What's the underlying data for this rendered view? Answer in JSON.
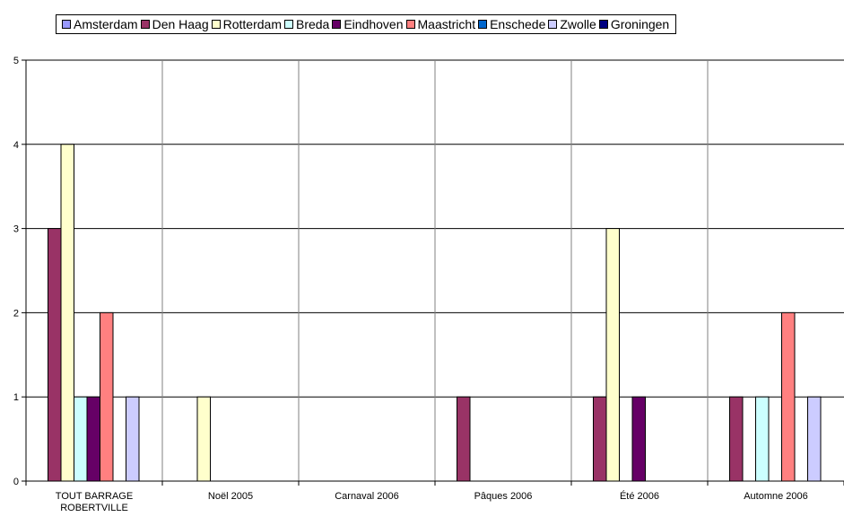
{
  "chart_data": {
    "type": "bar",
    "categories": [
      "TOUT BARRAGE ROBERTVILLE",
      "Noël 2005",
      "Carnaval 2006",
      "Pâques 2006",
      "Été 2006",
      "Automne 2006"
    ],
    "category_lines": [
      [
        "TOUT BARRAGE",
        "ROBERTVILLE"
      ],
      [
        "Noël 2005"
      ],
      [
        "Carnaval 2006"
      ],
      [
        "Pâques 2006"
      ],
      [
        "Été 2006"
      ],
      [
        "Automne 2006"
      ]
    ],
    "series": [
      {
        "name": "Amsterdam",
        "color": "#9999FF",
        "values": [
          0,
          0,
          0,
          0,
          0,
          0
        ]
      },
      {
        "name": "Den Haag",
        "color": "#993366",
        "values": [
          3,
          0,
          0,
          1,
          1,
          1
        ]
      },
      {
        "name": "Rotterdam",
        "color": "#FFFFCC",
        "values": [
          4,
          1,
          0,
          0,
          3,
          0
        ]
      },
      {
        "name": "Breda",
        "color": "#CCFFFF",
        "values": [
          1,
          0,
          0,
          0,
          0,
          1
        ]
      },
      {
        "name": "Eindhoven",
        "color": "#660066",
        "values": [
          1,
          0,
          0,
          0,
          1,
          0
        ]
      },
      {
        "name": "Maastricht",
        "color": "#FF8080",
        "values": [
          2,
          0,
          0,
          0,
          0,
          2
        ]
      },
      {
        "name": "Enschede",
        "color": "#0066CC",
        "values": [
          0,
          0,
          0,
          0,
          0,
          0
        ]
      },
      {
        "name": "Zwolle",
        "color": "#CCCCFF",
        "values": [
          1,
          0,
          0,
          0,
          0,
          1
        ]
      },
      {
        "name": "Groningen",
        "color": "#000080",
        "values": [
          0,
          0,
          0,
          0,
          0,
          0
        ]
      }
    ],
    "ylim": [
      0,
      5
    ],
    "yticks": [
      0,
      1,
      2,
      3,
      4,
      5
    ],
    "grid": true,
    "legend_position": "top"
  }
}
